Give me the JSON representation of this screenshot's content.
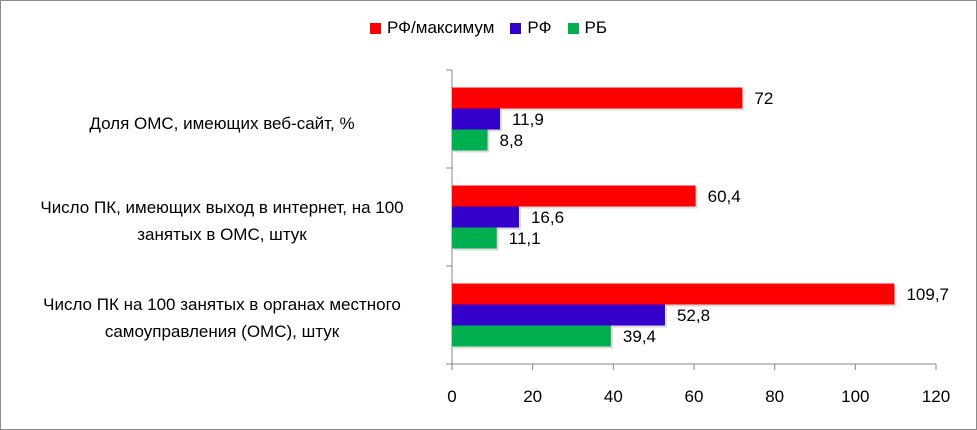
{
  "chart_data": {
    "type": "bar",
    "orientation": "horizontal",
    "categories": [
      "Доля ОМС, имеющих веб-сайт, %",
      "Число ПК, имеющих выход в интернет,  на 100 занятых в ОМС, штук",
      "Число ПК на 100 занятых в органах местного самоуправления (ОМС), штук"
    ],
    "series": [
      {
        "name": "РФ/максимум",
        "color": "#ff0000",
        "values": [
          72,
          60.4,
          109.7
        ],
        "labels": [
          "72",
          "60,4",
          "109,7"
        ]
      },
      {
        "name": "РФ",
        "color": "#3300cc",
        "values": [
          11.9,
          16.6,
          52.8
        ],
        "labels": [
          "11,9",
          "16,6",
          "52,8"
        ]
      },
      {
        "name": "РБ",
        "color": "#00b050",
        "values": [
          8.8,
          11.1,
          39.4
        ],
        "labels": [
          "8,8",
          "11,1",
          "39,4"
        ]
      }
    ],
    "xlim": [
      0,
      120
    ],
    "xticks": [
      0,
      20,
      40,
      60,
      80,
      100,
      120
    ],
    "legend_position": "top",
    "grid": false
  }
}
